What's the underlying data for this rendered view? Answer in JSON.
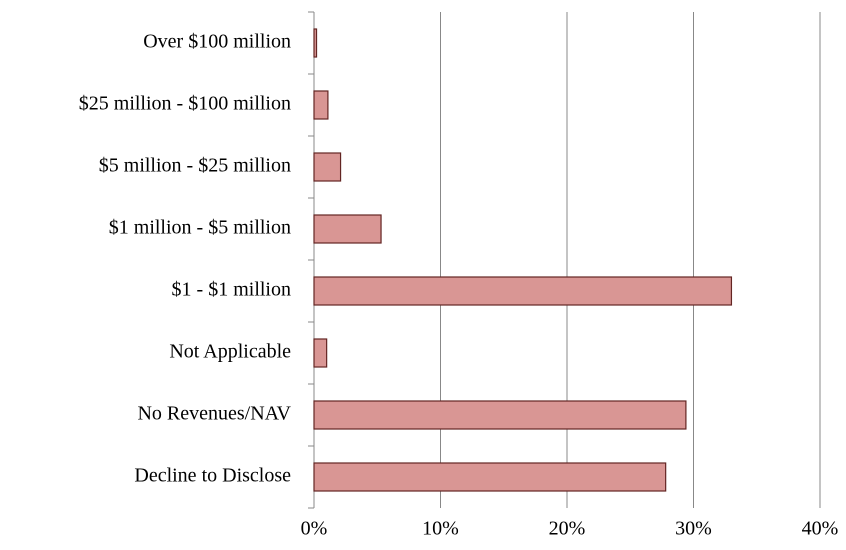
{
  "chart_data": {
    "type": "bar",
    "orientation": "horizontal",
    "categories": [
      "Over $100 million",
      "$25 million - $100 million",
      "$5 million - $25 million",
      "$1 million - $5 million",
      "$1 - $1 million",
      "Not Applicable",
      "No Revenues/NAV",
      "Decline to Disclose"
    ],
    "values": [
      0.2,
      1.1,
      2.1,
      5.3,
      33.0,
      1.0,
      29.4,
      27.8
    ],
    "color": "#d99694",
    "edge_color": "#632523",
    "xlim": [
      0,
      40
    ],
    "xticks": [
      {
        "value": 0,
        "label": "0%"
      },
      {
        "value": 10,
        "label": "10%"
      },
      {
        "value": 20,
        "label": "20%"
      },
      {
        "value": 30,
        "label": "30%"
      },
      {
        "value": 40,
        "label": "40%"
      }
    ],
    "grid": true
  }
}
